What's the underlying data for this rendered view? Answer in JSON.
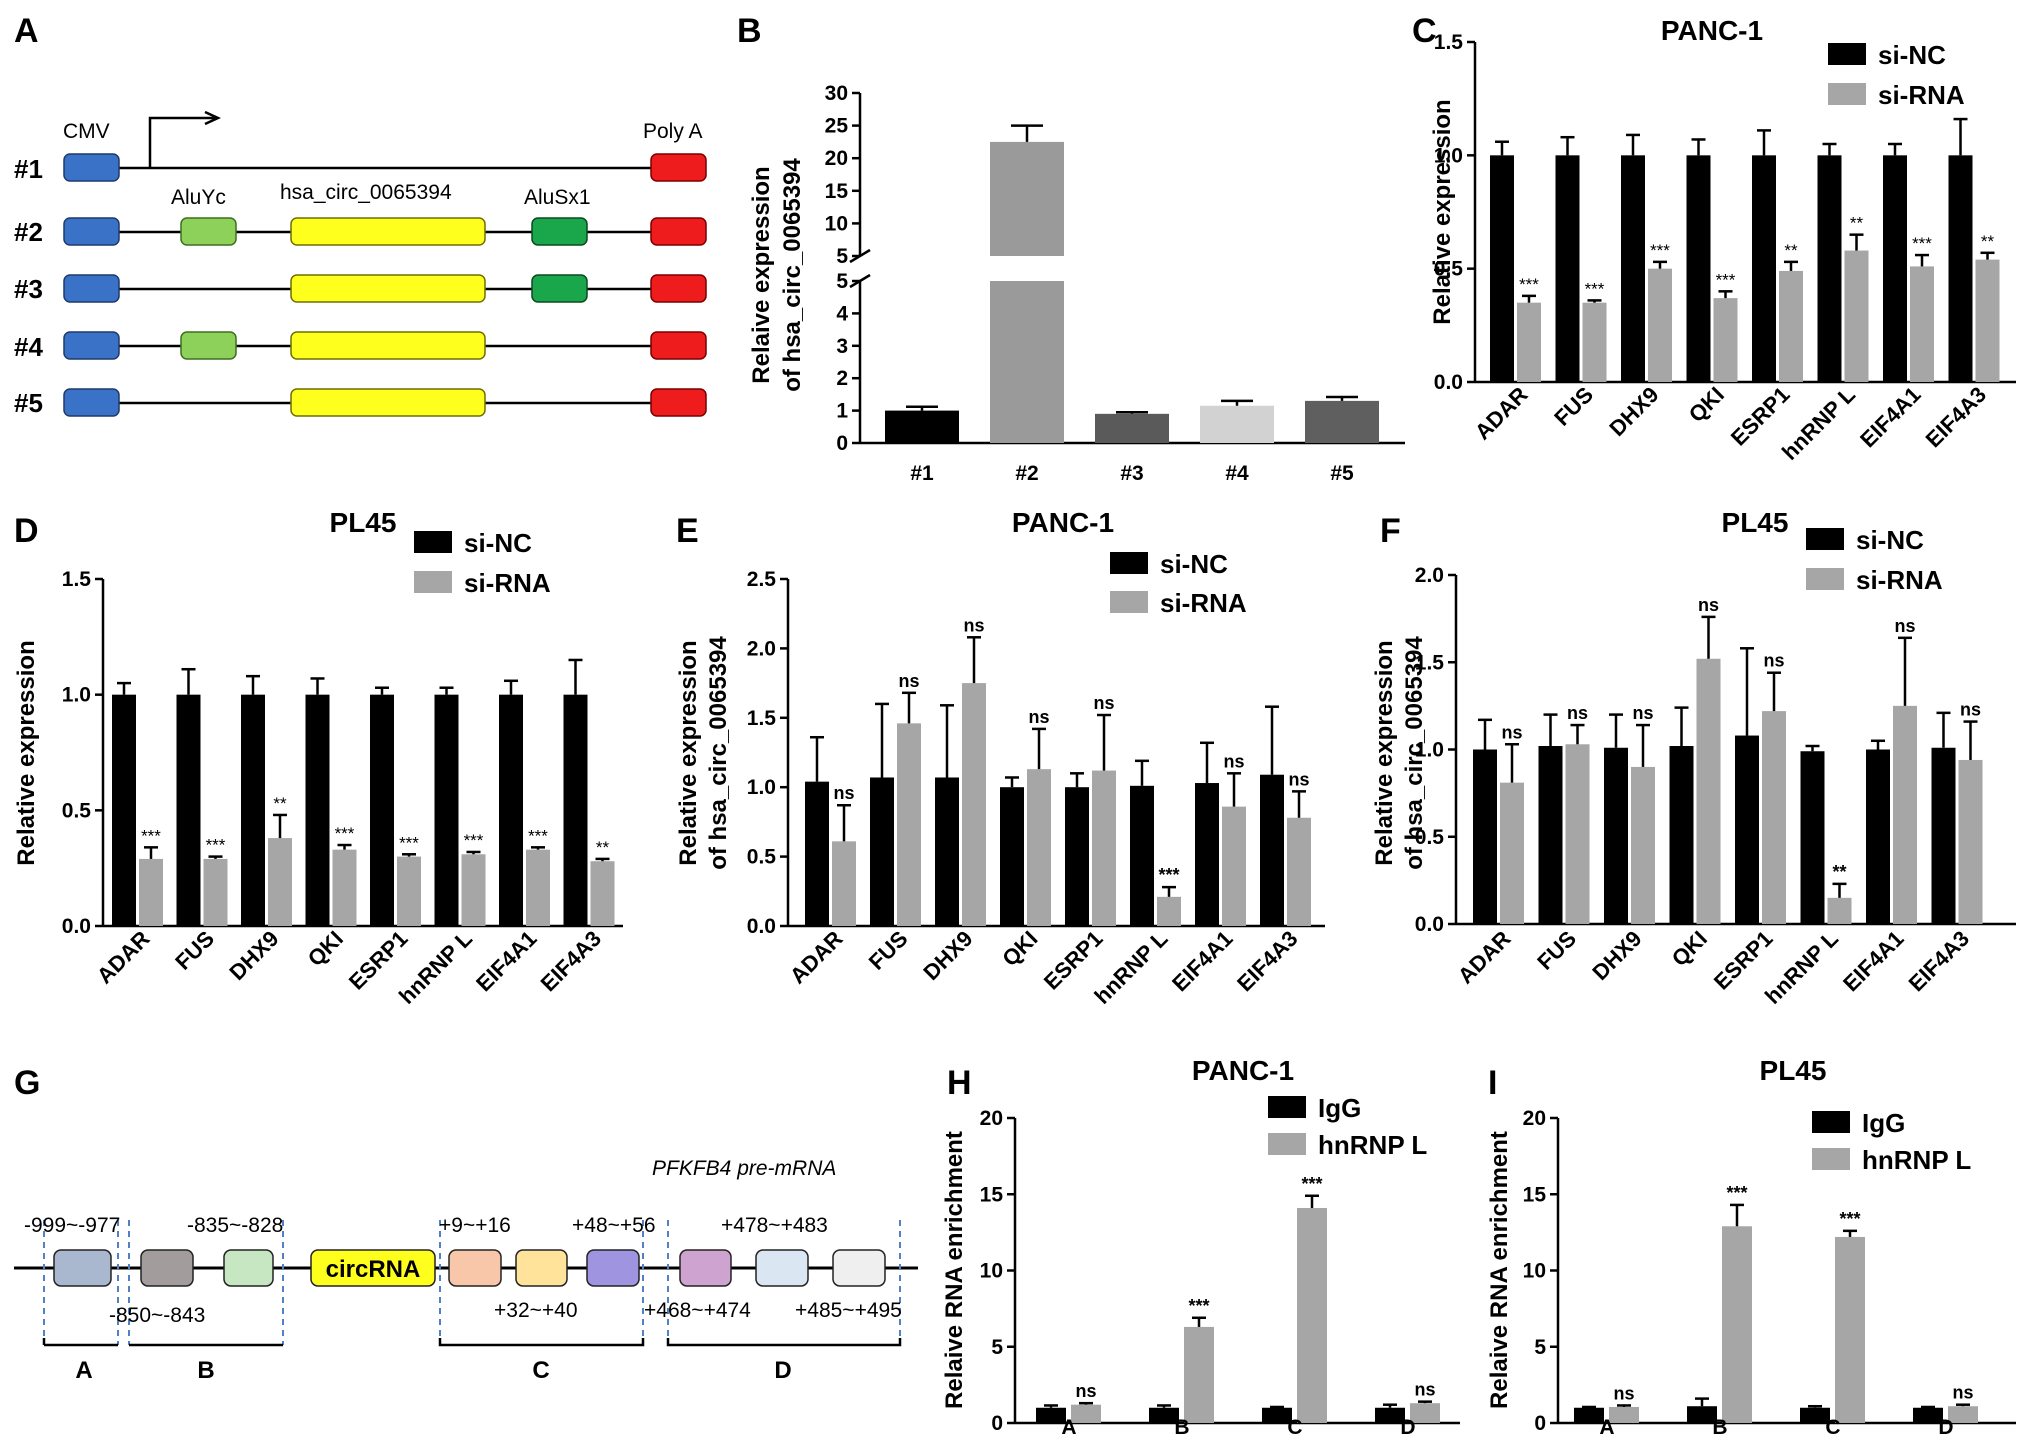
{
  "figure": {
    "panel_labels": [
      "A",
      "B",
      "C",
      "D",
      "E",
      "F",
      "G",
      "H",
      "I"
    ],
    "colors": {
      "si_nc": "#000000",
      "si_rna": "#a6a6a6",
      "cmv": "#3a72c8",
      "polya": "#ee1c1c",
      "aluyc": "#8dd05a",
      "circ": "#ffff1e",
      "alusx1": "#1aa64a"
    }
  },
  "diagram_a": {
    "labels": {
      "cmv": "CMV",
      "polya": "Poly A",
      "aluyc": "AluYc",
      "circ": "hsa_circ_0065394",
      "alusx1": "AluSx1"
    },
    "constructs": [
      "#1",
      "#2",
      "#3",
      "#4",
      "#5"
    ]
  },
  "diagram_g": {
    "premrna_label": "PFKFB4 pre-mRNA",
    "circ_label": "circRNA",
    "top_labels": [
      "-999~-977",
      "-835~-828",
      "+9~+16",
      "+48~+56",
      "+478~+483"
    ],
    "bottom_labels": [
      "-850~-843",
      "+32~+40",
      "+468~+474",
      "+485~+495"
    ],
    "regions": [
      "A",
      "B",
      "C",
      "D"
    ]
  },
  "chart_data": [
    {
      "id": "B",
      "type": "bar",
      "title": "",
      "ylabel": [
        "Relaive expression",
        "of hsa_circ_0065394"
      ],
      "categories": [
        "#1",
        "#2",
        "#3",
        "#4",
        "#5"
      ],
      "values": [
        1.0,
        22.5,
        0.9,
        1.15,
        1.3
      ],
      "errors": [
        0.12,
        2.5,
        0.05,
        0.15,
        0.12
      ],
      "colors": [
        "#000000",
        "#9a9a9a",
        "#5a5a5a",
        "#d2d2d2",
        "#5f5f5f"
      ],
      "ylim_lower": [
        0,
        5
      ],
      "ylim_upper": [
        5,
        30
      ],
      "yticks_lower": [
        "0",
        "1",
        "2",
        "3",
        "4",
        "5"
      ],
      "yticks_upper": [
        "5",
        "10",
        "15",
        "20",
        "25",
        "30"
      ]
    },
    {
      "id": "C",
      "type": "bar",
      "title": "PANC-1",
      "ylabel": [
        "Relative expression"
      ],
      "ylim": [
        0,
        1.5
      ],
      "yticks": [
        "0.0",
        "0.5",
        "1.0",
        "1.5"
      ],
      "categories": [
        "ADAR",
        "FUS",
        "DHX9",
        "QKI",
        "ESRP1",
        "hnRNP L",
        "EIF4A1",
        "EIF4A3"
      ],
      "series": [
        {
          "name": "si-NC",
          "values": [
            1.0,
            1.0,
            1.0,
            1.0,
            1.0,
            1.0,
            1.0,
            1.0
          ],
          "errors": [
            0.06,
            0.08,
            0.09,
            0.07,
            0.11,
            0.05,
            0.05,
            0.16
          ]
        },
        {
          "name": "si-RNA",
          "values": [
            0.35,
            0.35,
            0.5,
            0.37,
            0.49,
            0.58,
            0.51,
            0.54
          ],
          "errors": [
            0.03,
            0.01,
            0.03,
            0.03,
            0.04,
            0.07,
            0.05,
            0.03
          ]
        }
      ],
      "annotations": [
        "***",
        "***",
        "***",
        "***",
        "**",
        "**",
        "***",
        "**"
      ]
    },
    {
      "id": "D",
      "type": "bar",
      "title": "PL45",
      "ylabel": [
        "Relative expression"
      ],
      "ylim": [
        0,
        1.5
      ],
      "yticks": [
        "0.0",
        "0.5",
        "1.0",
        "1.5"
      ],
      "categories": [
        "ADAR",
        "FUS",
        "DHX9",
        "QKI",
        "ESRP1",
        "hnRNP L",
        "EIF4A1",
        "EIF4A3"
      ],
      "series": [
        {
          "name": "si-NC",
          "values": [
            1.0,
            1.0,
            1.0,
            1.0,
            1.0,
            1.0,
            1.0,
            1.0
          ],
          "errors": [
            0.05,
            0.11,
            0.08,
            0.07,
            0.03,
            0.03,
            0.06,
            0.15
          ]
        },
        {
          "name": "si-RNA",
          "values": [
            0.29,
            0.29,
            0.38,
            0.33,
            0.3,
            0.31,
            0.33,
            0.28
          ],
          "errors": [
            0.05,
            0.01,
            0.1,
            0.02,
            0.01,
            0.01,
            0.01,
            0.01
          ]
        }
      ],
      "annotations": [
        "***",
        "***",
        "**",
        "***",
        "***",
        "***",
        "***",
        "**"
      ]
    },
    {
      "id": "E",
      "type": "bar",
      "title": "PANC-1",
      "ylabel": [
        "Relative expression",
        "of hsa_circ_0065394"
      ],
      "ylim": [
        0,
        2.5
      ],
      "yticks": [
        "0.0",
        "0.5",
        "1.0",
        "1.5",
        "2.0",
        "2.5"
      ],
      "categories": [
        "ADAR",
        "FUS",
        "DHX9",
        "QKI",
        "ESRP1",
        "hnRNP L",
        "EIF4A1",
        "EIF4A3"
      ],
      "series": [
        {
          "name": "si-NC",
          "values": [
            1.04,
            1.07,
            1.07,
            1.0,
            1.0,
            1.01,
            1.03,
            1.09
          ],
          "errors": [
            0.32,
            0.53,
            0.52,
            0.07,
            0.1,
            0.18,
            0.29,
            0.49
          ]
        },
        {
          "name": "si-RNA",
          "values": [
            0.61,
            1.46,
            1.75,
            1.13,
            1.12,
            0.21,
            0.86,
            0.78
          ],
          "errors": [
            0.26,
            0.22,
            0.33,
            0.29,
            0.4,
            0.07,
            0.24,
            0.19
          ]
        }
      ],
      "annotations": [
        "ns",
        "ns",
        "ns",
        "ns",
        "ns",
        "***",
        "ns",
        "ns"
      ]
    },
    {
      "id": "F",
      "type": "bar",
      "title": "PL45",
      "ylabel": [
        "Relative expression",
        "of hsa_circ_0065394"
      ],
      "ylim": [
        0,
        2.0
      ],
      "yticks": [
        "0.0",
        "0.5",
        "1.0",
        "1.5",
        "2.0"
      ],
      "categories": [
        "ADAR",
        "FUS",
        "DHX9",
        "QKI",
        "ESRP1",
        "hnRNP L",
        "EIF4A1",
        "EIF4A3"
      ],
      "series": [
        {
          "name": "si-NC",
          "values": [
            1.0,
            1.02,
            1.01,
            1.02,
            1.08,
            0.99,
            1.0,
            1.01
          ],
          "errors": [
            0.17,
            0.18,
            0.19,
            0.22,
            0.5,
            0.03,
            0.05,
            0.2
          ]
        },
        {
          "name": "si-RNA",
          "values": [
            0.81,
            1.03,
            0.9,
            1.52,
            1.22,
            0.15,
            1.25,
            0.94
          ],
          "errors": [
            0.22,
            0.11,
            0.24,
            0.24,
            0.22,
            0.08,
            0.39,
            0.22
          ]
        }
      ],
      "annotations": [
        "ns",
        "ns",
        "ns",
        "ns",
        "ns",
        "**",
        "ns",
        "ns"
      ]
    },
    {
      "id": "H",
      "type": "bar",
      "title": "PANC-1",
      "ylabel": [
        "Relaive RNA enrichment"
      ],
      "ylim": [
        0,
        20
      ],
      "yticks": [
        "0",
        "5",
        "10",
        "15",
        "20"
      ],
      "categories": [
        "A",
        "B",
        "C",
        "D"
      ],
      "series": [
        {
          "name": "IgG",
          "values": [
            1.0,
            1.0,
            1.0,
            1.0
          ],
          "errors": [
            0.15,
            0.15,
            0.05,
            0.2
          ]
        },
        {
          "name": "hnRNP L",
          "values": [
            1.2,
            6.3,
            14.1,
            1.3
          ],
          "errors": [
            0.1,
            0.6,
            0.8,
            0.1
          ]
        }
      ],
      "annotations": [
        "ns",
        "***",
        "***",
        "ns"
      ]
    },
    {
      "id": "I",
      "type": "bar",
      "title": "PL45",
      "ylabel": [
        "Relaive RNA enrichment"
      ],
      "ylim": [
        0,
        20
      ],
      "yticks": [
        "0",
        "5",
        "10",
        "15",
        "20"
      ],
      "categories": [
        "A",
        "B",
        "C",
        "D"
      ],
      "series": [
        {
          "name": "IgG",
          "values": [
            1.0,
            1.1,
            1.0,
            1.0
          ],
          "errors": [
            0.05,
            0.5,
            0.1,
            0.05
          ]
        },
        {
          "name": "hnRNP L",
          "values": [
            1.05,
            12.9,
            12.2,
            1.1
          ],
          "errors": [
            0.1,
            1.4,
            0.4,
            0.1
          ]
        }
      ],
      "annotations": [
        "ns",
        "***",
        "***",
        "ns"
      ]
    }
  ]
}
